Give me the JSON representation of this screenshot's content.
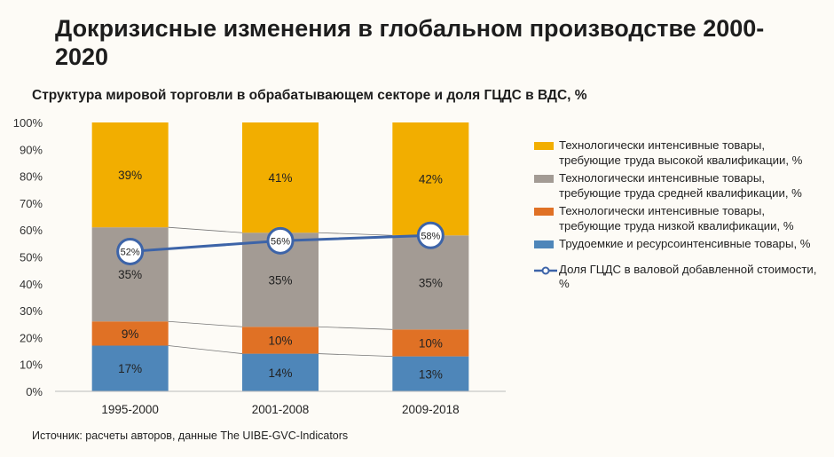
{
  "page": {
    "title": "Докризисные изменения в глобальном производстве 2000-2020",
    "source": "Источник: расчеты авторов, данные The UIBE-GVC-Indicators"
  },
  "chart_data": {
    "type": "bar",
    "stacked": true,
    "title": "Структура мировой торговли в обрабатывающем секторе и доля ГЦДС в ВДС, %",
    "categories": [
      "1995-2000",
      "2001-2008",
      "2009-2018"
    ],
    "ylim": [
      0,
      100
    ],
    "y_ticks": [
      "0%",
      "10%",
      "20%",
      "30%",
      "40%",
      "50%",
      "60%",
      "70%",
      "80%",
      "90%",
      "100%"
    ],
    "series": [
      {
        "name": "Трудоемкие и ресурсоинтенсивные товары, %",
        "values": [
          17,
          14,
          13
        ],
        "labels": [
          "17%",
          "14%",
          "13%"
        ],
        "color": "#4e86b9"
      },
      {
        "name": "Технологически интенсивные товары, требующие труда низкой квалификации, %",
        "values": [
          9,
          10,
          10
        ],
        "labels": [
          "9%",
          "10%",
          "10%"
        ],
        "color": "#e07125"
      },
      {
        "name": "Технологически интенсивные товары, требующие труда средней квалификации, %",
        "values": [
          35,
          35,
          35
        ],
        "labels": [
          "35%",
          "35%",
          "35%"
        ],
        "color": "#a39b94"
      },
      {
        "name": "Технологически интенсивные товары, требующие труда высокой квалификации, %",
        "values": [
          39,
          41,
          42
        ],
        "labels": [
          "39%",
          "41%",
          "42%"
        ],
        "color": "#f2ae00"
      }
    ],
    "line_series": {
      "name": "Доля ГЦДС в валовой добавленной стоимости, %",
      "values": [
        52,
        56,
        58
      ],
      "labels": [
        "52%",
        "56%",
        "58%"
      ],
      "color": "#3d64a8"
    },
    "series_lines": true,
    "grid": false,
    "legend_position": "right"
  }
}
